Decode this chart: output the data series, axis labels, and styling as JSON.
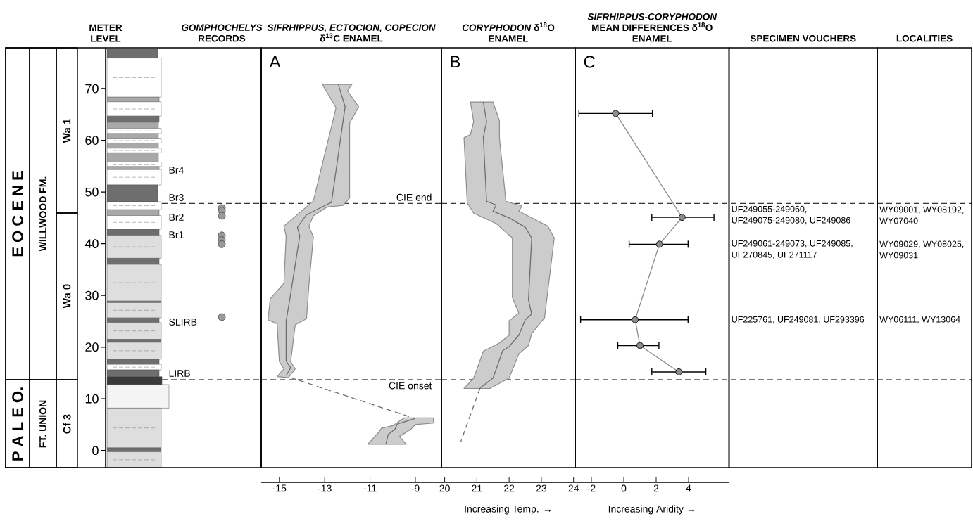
{
  "chart_data": [
    {
      "type": "scatter",
      "categories": [
        "METER LEVEL",
        "*GOMPHOCHELYS* RECORDS"
      ],
      "marker": "circle",
      "tick_labels": "y",
      "series": [
        {
          "type": "scatter",
          "color": "#9a9a9a",
          "x": [
            "*GOMPHOCHELYS* RECORDS",
            "*GOMPHOCHELYS* RECORDS",
            "*GOMPHOCHELYS* RECORDS",
            "*GOMPHOCHELYS* RECORDS",
            "*GOMPHOCHELYS* RECORDS",
            "*GOMPHOCHELYS* RECORDS",
            "*GOMPHOCHELYS* RECORDS"
          ],
          "values": [
            46.9,
            46.4,
            45.4,
            41.6,
            40.7,
            39.9,
            25.8
          ]
        }
      ],
      "ylim": [
        -3.3,
        77.9
      ],
      "yticks": [
        0,
        10,
        20,
        30,
        40,
        50,
        60,
        70
      ],
      "annotations": [
        "E O C E N E",
        "P A L E O.",
        "WILLWOOD FM.",
        "FT. UNION",
        "Wa 1",
        "Wa 0",
        "Cf 3",
        "Br4",
        "Br3",
        "Br2",
        "Br1",
        "SLIRB",
        "LIRB"
      ],
      "ref_lines": [
        {
          "axis": "y",
          "value": 47.8
        },
        {
          "axis": "y",
          "value": 13.7
        }
      ]
    },
    {
      "type": "line",
      "title": "*SIFRHIPPUS, ECTOCION, COPECION* δ$^{13}$C ENAMEL",
      "tick_labels": "x",
      "xlim": [
        -15.8,
        -7.85
      ],
      "xticks": [
        -15,
        -13,
        -11,
        -9
      ],
      "ylim": [
        -3.3,
        77.9
      ],
      "series": [
        {
          "type": "area",
          "color": "#cccccc",
          "x": [
            -13.1,
            -12.5,
            -13.5,
            -14.8,
            -14.7,
            -14.8,
            -15.4,
            -15.5,
            -15.1,
            -15.0,
            -14.8,
            -15.1,
            -14.6,
            -14.3,
            -14.5,
            -14.3,
            -13.8,
            -13.7,
            -13.5,
            -13.7,
            -13.5,
            -12.9,
            -12.2,
            -11.9,
            -11.9,
            -11.5,
            -12.0,
            -11.8
          ],
          "values": [
            70.8,
            66.3,
            48.3,
            43.4,
            41.5,
            32.3,
            29.4,
            25.3,
            24.5,
            17.2,
            15.8,
            14.3,
            14.1,
            15.8,
            17.2,
            24.3,
            25.5,
            31.8,
            41.3,
            43.4,
            45.4,
            47.1,
            47.4,
            48.8,
            63.3,
            66.5,
            69.6,
            70.8
          ]
        },
        {
          "type": "area",
          "color": "#cccccc",
          "x": [
            -9.5,
            -10.0,
            -10.5,
            -10.6,
            -11.1,
            -9.4,
            -9.7,
            -9.2,
            -9.0,
            -8.2,
            -8.2
          ],
          "values": [
            6.3,
            4.8,
            4.3,
            3.6,
            1.2,
            1.2,
            2.7,
            4.1,
            5.0,
            5.3,
            6.3
          ]
        },
        {
          "type": "line",
          "color": "#6e6e6e",
          "x": [
            -12.4,
            -12.1,
            -12.7,
            -12.9,
            -13.8,
            -14.2,
            -14.1,
            -14.5,
            -14.7,
            -14.7,
            -14.5,
            -14.7
          ],
          "values": [
            70.8,
            66.5,
            48.0,
            47.6,
            45.6,
            43.2,
            41.5,
            30.3,
            25.0,
            17.3,
            16.0,
            14.5
          ]
        },
        {
          "type": "line",
          "color": "#6e6e6e",
          "x": [
            -9.0,
            -9.8,
            -9.9,
            -10.2,
            -10.3
          ],
          "values": [
            6.2,
            5.1,
            4.1,
            3.1,
            1.2
          ]
        },
        {
          "type": "line",
          "color": "#6e6e6e",
          "line_style": "dashed",
          "x": [
            -14.5,
            -9.1
          ],
          "values": [
            14.1,
            6.3
          ]
        }
      ],
      "annotations": [
        "A"
      ],
      "ref_lines": [
        {
          "axis": "y",
          "value": 47.8,
          "label": "CIE end"
        },
        {
          "axis": "y",
          "value": 13.7,
          "label": "CIE onset"
        }
      ]
    },
    {
      "type": "line",
      "title": "*CORYPHODON* δ$^{18}$O ENAMEL",
      "xlabel": "Increasing Temp. →",
      "tick_labels": "x",
      "xlim": [
        19.9,
        24.05
      ],
      "xticks": [
        20,
        21,
        22,
        23,
        24
      ],
      "ylim": [
        -3.3,
        77.9
      ],
      "series": [
        {
          "type": "area",
          "color": "#cccccc",
          "x": [
            20.8,
            20.9,
            20.8,
            20.6,
            20.7,
            20.9,
            21.6,
            22.1,
            22.1,
            22.3,
            22.0,
            22.0,
            21.7,
            21.2,
            20.9,
            20.6,
            21.4,
            22.0,
            22.3,
            22.6,
            22.7,
            23.1,
            23.4,
            23.2,
            22.3,
            22.4,
            21.9,
            21.7,
            21.7,
            21.5
          ],
          "values": [
            67.4,
            63.6,
            61.1,
            60.5,
            47.9,
            45.9,
            43.9,
            41.1,
            29.6,
            26.6,
            25.1,
            22.3,
            20.8,
            19.2,
            14.0,
            12.0,
            12.0,
            14.0,
            18.7,
            20.3,
            22.6,
            25.7,
            41.1,
            43.4,
            46.3,
            47.3,
            48.2,
            60.4,
            63.8,
            67.4
          ]
        },
        {
          "type": "line",
          "color": "#6e6e6e",
          "x": [
            21.2,
            21.3,
            21.2,
            21.3,
            21.6,
            21.5,
            22.0,
            22.5,
            22.7,
            22.6,
            22.7,
            22.5,
            22.3,
            22.0,
            21.8,
            21.5,
            21.1
          ],
          "values": [
            67.4,
            63.6,
            60.6,
            48.2,
            47.5,
            46.3,
            45.0,
            43.2,
            41.1,
            29.1,
            26.4,
            25.3,
            22.3,
            20.1,
            19.3,
            14.0,
            12.1
          ]
        },
        {
          "type": "line",
          "color": "#6e6e6e",
          "line_style": "dashed",
          "x": [
            21.1,
            20.5
          ],
          "values": [
            12.1,
            1.7
          ]
        }
      ],
      "annotations": [
        "B"
      ],
      "ref_lines": [
        {
          "axis": "y",
          "value": 47.8
        },
        {
          "axis": "y",
          "value": 13.7
        }
      ]
    },
    {
      "type": "line",
      "title": "*SIFRHIPPUS-CORYPHODON* MEAN DIFFERENCES δ$^{18}$O ENAMEL",
      "xlabel": "Increasing Aridity →",
      "tick_labels": "x",
      "marker": "circle",
      "xlim": [
        -3.0,
        6.5
      ],
      "xticks": [
        -2,
        0,
        2,
        4
      ],
      "ylim": [
        -3.3,
        77.9
      ],
      "series": [
        {
          "type": "line",
          "color": "#8c8c8c",
          "x": [
            -0.5,
            3.6,
            2.2,
            0.7,
            1.0,
            3.4
          ],
          "values": [
            65.2,
            45.1,
            39.9,
            25.3,
            20.3,
            15.2
          ],
          "xerrors": [
            [
              -2.8,
              1.8
            ],
            [
              1.7,
              5.6
            ],
            [
              0.3,
              4.0
            ],
            [
              -2.7,
              4.0
            ],
            [
              -0.4,
              2.2
            ],
            [
              1.7,
              5.1
            ]
          ]
        }
      ],
      "annotations": [
        "C"
      ],
      "ref_lines": [
        {
          "axis": "y",
          "value": 47.8
        },
        {
          "axis": "y",
          "value": 13.7
        }
      ]
    },
    {
      "type": "other",
      "title": "SPECIMEN VOUCHERS",
      "annotations": [
        "UF249055-249060, UF249075-249080, UF249086",
        "UF249061-249073, UF249085, UF270845, UF271117",
        "UF225761, UF249081, UF293396"
      ]
    },
    {
      "type": "other",
      "title": "LOCALITIES",
      "annotations": [
        "WY09001, WY08192, WY07040",
        "WY09029, WY08025, WY09031",
        "WY06111, WY13064"
      ]
    }
  ]
}
